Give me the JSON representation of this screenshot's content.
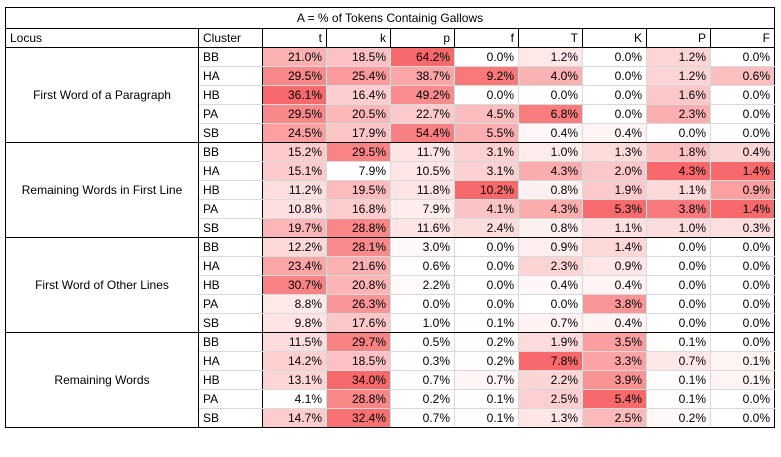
{
  "title": "A = % of Tokens Containig Gallows",
  "header": {
    "locus": "Locus",
    "cluster": "Cluster",
    "columns": [
      "t",
      "k",
      "p",
      "f",
      "T",
      "K",
      "P",
      "F"
    ]
  },
  "heat_colors": {
    "low": "#ffffff",
    "high": "#f8696b"
  },
  "groups": [
    {
      "locus": "First Word of a Paragraph",
      "rows": [
        {
          "cluster": "BB",
          "values": [
            "21.0%",
            "18.5%",
            "64.2%",
            "0.0%",
            "1.2%",
            "0.0%",
            "1.2%",
            "0.0%"
          ]
        },
        {
          "cluster": "HA",
          "values": [
            "29.5%",
            "25.4%",
            "38.7%",
            "9.2%",
            "4.0%",
            "0.0%",
            "1.2%",
            "0.6%"
          ]
        },
        {
          "cluster": "HB",
          "values": [
            "36.1%",
            "16.4%",
            "49.2%",
            "0.0%",
            "0.0%",
            "0.0%",
            "1.6%",
            "0.0%"
          ]
        },
        {
          "cluster": "PA",
          "values": [
            "29.5%",
            "20.5%",
            "22.7%",
            "4.5%",
            "6.8%",
            "0.0%",
            "2.3%",
            "0.0%"
          ]
        },
        {
          "cluster": "SB",
          "values": [
            "24.5%",
            "17.9%",
            "54.4%",
            "5.5%",
            "0.4%",
            "0.4%",
            "0.0%",
            "0.0%"
          ]
        }
      ]
    },
    {
      "locus": "Remaining Words in First Line",
      "rows": [
        {
          "cluster": "BB",
          "values": [
            "15.2%",
            "29.5%",
            "11.7%",
            "3.1%",
            "1.0%",
            "1.3%",
            "1.8%",
            "0.4%"
          ]
        },
        {
          "cluster": "HA",
          "values": [
            "15.1%",
            "7.9%",
            "10.5%",
            "3.1%",
            "4.3%",
            "2.0%",
            "4.3%",
            "1.4%"
          ]
        },
        {
          "cluster": "HB",
          "values": [
            "11.2%",
            "19.5%",
            "11.8%",
            "10.2%",
            "0.8%",
            "1.9%",
            "1.1%",
            "0.9%"
          ]
        },
        {
          "cluster": "PA",
          "values": [
            "10.8%",
            "16.8%",
            "7.9%",
            "4.1%",
            "4.3%",
            "5.3%",
            "3.8%",
            "1.4%"
          ]
        },
        {
          "cluster": "SB",
          "values": [
            "19.7%",
            "28.8%",
            "11.6%",
            "2.4%",
            "0.8%",
            "1.1%",
            "1.0%",
            "0.3%"
          ]
        }
      ]
    },
    {
      "locus": "First Word of Other Lines",
      "rows": [
        {
          "cluster": "BB",
          "values": [
            "12.2%",
            "28.1%",
            "3.0%",
            "0.0%",
            "0.9%",
            "1.4%",
            "0.0%",
            "0.0%"
          ]
        },
        {
          "cluster": "HA",
          "values": [
            "23.4%",
            "21.6%",
            "0.6%",
            "0.0%",
            "2.3%",
            "0.9%",
            "0.0%",
            "0.0%"
          ]
        },
        {
          "cluster": "HB",
          "values": [
            "30.7%",
            "20.8%",
            "2.2%",
            "0.0%",
            "0.4%",
            "0.4%",
            "0.0%",
            "0.0%"
          ]
        },
        {
          "cluster": "PA",
          "values": [
            "8.8%",
            "26.3%",
            "0.0%",
            "0.0%",
            "0.0%",
            "3.8%",
            "0.0%",
            "0.0%"
          ]
        },
        {
          "cluster": "SB",
          "values": [
            "9.8%",
            "17.6%",
            "1.0%",
            "0.1%",
            "0.7%",
            "0.4%",
            "0.0%",
            "0.0%"
          ]
        }
      ]
    },
    {
      "locus": "Remaining Words",
      "rows": [
        {
          "cluster": "BB",
          "values": [
            "11.5%",
            "29.7%",
            "0.5%",
            "0.2%",
            "1.9%",
            "3.5%",
            "0.1%",
            "0.0%"
          ]
        },
        {
          "cluster": "HA",
          "values": [
            "14.2%",
            "18.5%",
            "0.3%",
            "0.2%",
            "7.8%",
            "3.3%",
            "0.7%",
            "0.1%"
          ]
        },
        {
          "cluster": "HB",
          "values": [
            "13.1%",
            "34.0%",
            "0.7%",
            "0.7%",
            "2.2%",
            "3.9%",
            "0.1%",
            "0.1%"
          ]
        },
        {
          "cluster": "PA",
          "values": [
            "4.1%",
            "28.8%",
            "0.2%",
            "0.1%",
            "2.5%",
            "5.4%",
            "0.1%",
            "0.0%"
          ]
        },
        {
          "cluster": "SB",
          "values": [
            "14.7%",
            "32.4%",
            "0.7%",
            "0.1%",
            "1.3%",
            "2.5%",
            "0.2%",
            "0.0%"
          ]
        }
      ]
    }
  ]
}
